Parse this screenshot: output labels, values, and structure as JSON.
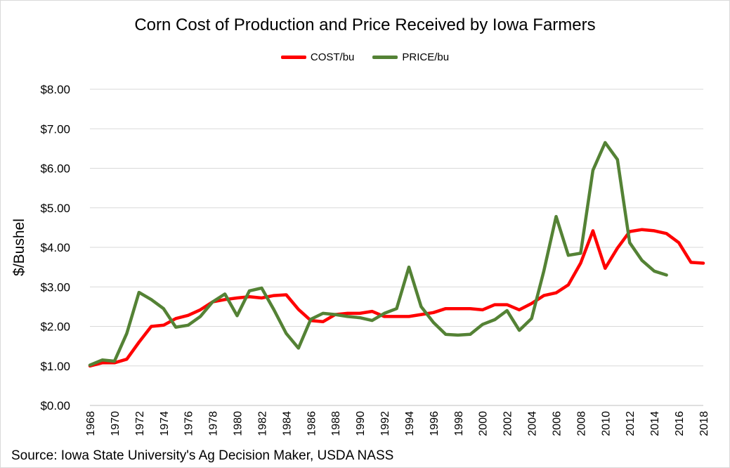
{
  "title": "Corn Cost of Production and Price Received by Iowa Farmers",
  "source": "Source: Iowa State University's Ag Decision Maker, USDA NASS",
  "legend": {
    "cost": "COST/bu",
    "price": "PRICE/bu"
  },
  "colors": {
    "cost": "#ff0000",
    "price": "#548235",
    "grid": "#d9d9d9"
  },
  "chart_data": {
    "type": "line",
    "title": "Corn Cost of Production and Price Received by Iowa Farmers",
    "xlabel": "",
    "ylabel": "$/Bushel",
    "ylim": [
      0,
      8
    ],
    "grid": true,
    "legend_position": "top",
    "y_ticks": [
      "$0.00",
      "$1.00",
      "$2.00",
      "$3.00",
      "$4.00",
      "$5.00",
      "$6.00",
      "$7.00",
      "$8.00"
    ],
    "x_tick_labels": [
      "1968",
      "1970",
      "1972",
      "1974",
      "1976",
      "1978",
      "1980",
      "1982",
      "1984",
      "1986",
      "1988",
      "1990",
      "1992",
      "1994",
      "1996",
      "1998",
      "2000",
      "2002",
      "2004",
      "2006",
      "2008",
      "2010",
      "2012",
      "2014",
      "2016",
      "2018"
    ],
    "x": [
      1968,
      1969,
      1970,
      1971,
      1972,
      1973,
      1974,
      1975,
      1976,
      1977,
      1978,
      1979,
      1980,
      1981,
      1982,
      1983,
      1984,
      1985,
      1986,
      1987,
      1988,
      1989,
      1990,
      1991,
      1992,
      1993,
      1994,
      1995,
      1996,
      1997,
      1998,
      1999,
      2000,
      2001,
      2002,
      2003,
      2004,
      2005,
      2006,
      2007,
      2008,
      2009,
      2010,
      2011,
      2012,
      2013,
      2014,
      2015,
      2016,
      2017,
      2018
    ],
    "series": [
      {
        "name": "COST/bu",
        "values": [
          1.0,
          1.08,
          1.08,
          1.17,
          1.6,
          2.0,
          2.03,
          2.2,
          2.28,
          2.42,
          2.62,
          2.68,
          2.72,
          2.75,
          2.72,
          2.78,
          2.8,
          2.43,
          2.15,
          2.12,
          2.3,
          2.33,
          2.33,
          2.38,
          2.25,
          2.25,
          2.25,
          2.3,
          2.35,
          2.45,
          2.45,
          2.45,
          2.42,
          2.55,
          2.55,
          2.42,
          2.58,
          2.78,
          2.85,
          3.05,
          3.6,
          4.42,
          3.47,
          3.98,
          4.4,
          4.45,
          4.42,
          4.35,
          4.12,
          3.62,
          3.6
        ]
      },
      {
        "name": "PRICE/bu",
        "values": [
          1.02,
          1.15,
          1.12,
          1.82,
          2.86,
          2.68,
          2.45,
          1.98,
          2.03,
          2.25,
          2.62,
          2.82,
          2.27,
          2.9,
          2.97,
          2.42,
          1.82,
          1.45,
          2.18,
          2.33,
          2.3,
          2.25,
          2.22,
          2.15,
          2.33,
          2.45,
          3.5,
          2.5,
          2.1,
          1.8,
          1.78,
          1.8,
          2.05,
          2.17,
          2.4,
          1.9,
          2.2,
          3.4,
          4.78,
          3.8,
          3.85,
          5.95,
          6.65,
          6.22,
          4.12,
          3.67,
          3.4,
          3.3,
          null,
          null,
          null
        ]
      }
    ]
  }
}
